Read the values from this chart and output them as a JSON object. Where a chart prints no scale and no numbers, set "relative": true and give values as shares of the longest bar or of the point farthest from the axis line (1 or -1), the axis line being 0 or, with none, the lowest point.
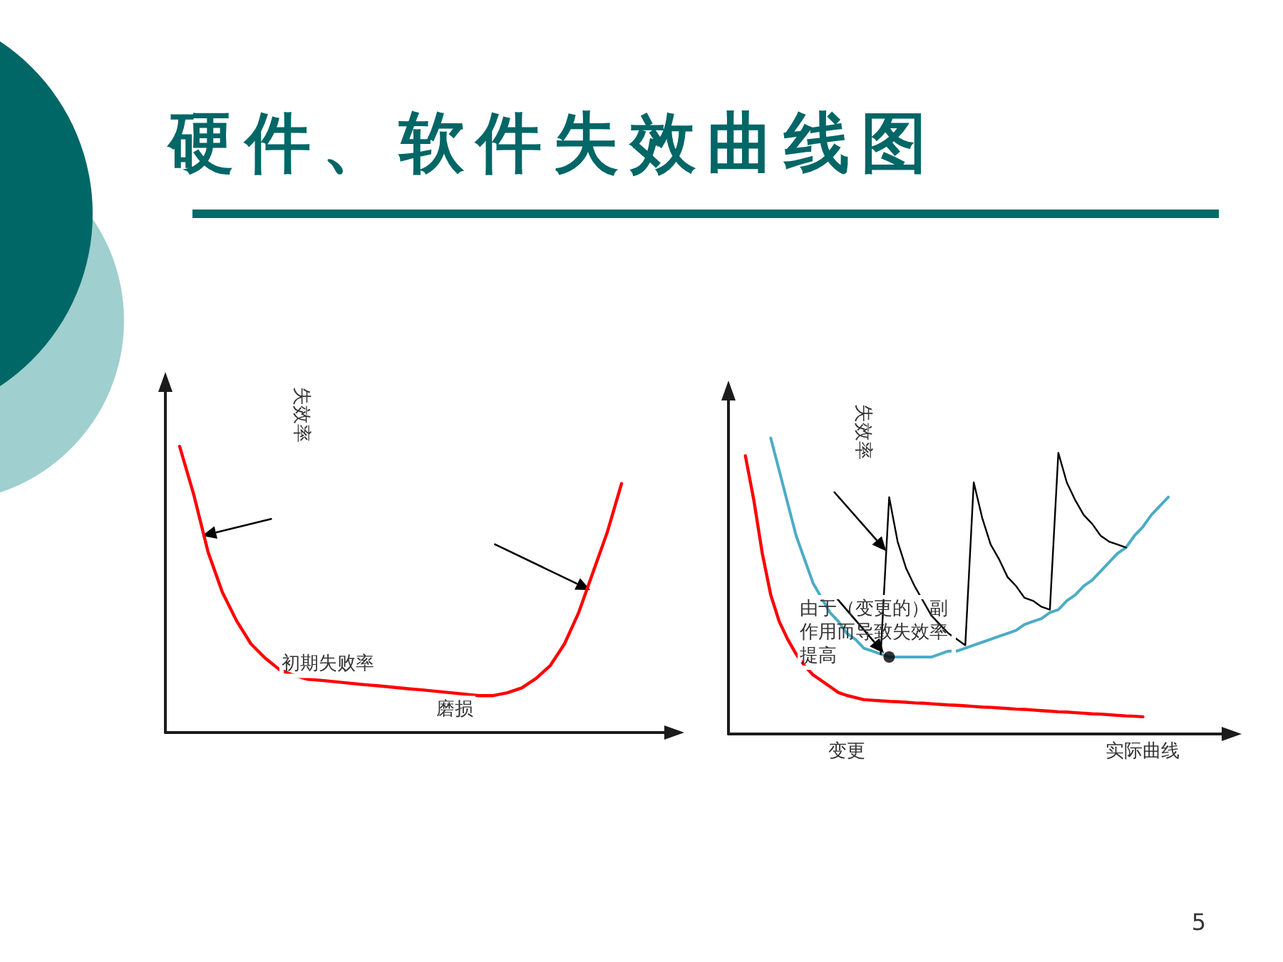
{
  "chart_data": [
    {
      "type": "line",
      "title": "硬件、软件失效曲线图",
      "ylabel": "失效率",
      "relative": true,
      "categories": [
        null,
        null,
        null,
        null,
        null,
        null,
        null,
        null,
        null,
        null,
        null,
        null,
        null,
        null,
        null,
        null,
        null,
        null,
        null,
        null,
        null,
        null,
        null,
        null,
        null,
        null,
        null,
        null,
        null,
        null,
        null,
        null,
        null,
        null,
        null,
        null,
        null
      ],
      "series": [
        {
          "color": "#ff0000",
          "values": [
            null,
            1,
            0.83,
            0.63,
            0.49,
            0.39,
            0.31,
            0.26,
            0.22,
            0.2,
            0.186,
            0.182,
            0.177,
            0.172,
            0.167,
            0.163,
            0.158,
            0.153,
            0.149,
            0.144,
            0.139,
            0.134,
            0.129,
            0.129,
            0.139,
            0.156,
            0.189,
            0.234,
            0.31,
            0.42,
            0.56,
            0.7,
            0.87,
            null,
            null,
            null,
            null
          ]
        }
      ],
      "annotations": [
        "初期失败率",
        "磨损"
      ]
    },
    {
      "type": "line",
      "ylabel": "失效率",
      "relative": true,
      "categories": [
        null,
        null,
        null,
        null,
        null,
        null,
        null,
        null,
        null,
        null,
        null,
        null,
        null,
        null,
        "变更",
        null,
        null,
        null,
        null,
        null,
        null,
        null,
        null,
        null,
        null,
        null,
        null,
        null,
        null,
        null,
        null,
        null,
        null,
        null,
        null,
        null,
        null,
        null,
        null,
        null,
        null,
        null,
        null,
        null,
        null,
        null,
        null,
        null,
        null,
        "实际曲线",
        null,
        null,
        null,
        null,
        null,
        null,
        null,
        null,
        null,
        null,
        null
      ],
      "series": [
        {
          "color": "#ff0000",
          "values": [
            null,
            null,
            0.94,
            0.79,
            0.61,
            0.47,
            0.38,
            0.32,
            0.27,
            0.23,
            0.2,
            0.18,
            0.16,
            0.14,
            0.13,
            0.123,
            0.116,
            0.114,
            0.112,
            0.11,
            0.109,
            0.107,
            0.105,
            0.104,
            0.102,
            0.1,
            0.098,
            0.097,
            0.095,
            0.093,
            0.091,
            0.09,
            0.088,
            0.086,
            0.084,
            0.083,
            0.081,
            0.079,
            0.077,
            0.075,
            0.074,
            0.072,
            0.07,
            0.068,
            0.067,
            0.065,
            0.063,
            0.061,
            0.06,
            0.058,
            null,
            null,
            null,
            null,
            null,
            null,
            null,
            null,
            null,
            null,
            null
          ]
        },
        {
          "color": "#4bacc6",
          "values": [
            null,
            null,
            null,
            null,
            null,
            1,
            0.89,
            0.78,
            0.67,
            0.59,
            0.51,
            0.46,
            0.41,
            0.38,
            0.34,
            0.32,
            0.29,
            0.28,
            0.27,
            0.26,
            0.26,
            0.26,
            0.26,
            0.26,
            0.26,
            0.27,
            0.28,
            0.28,
            0.29,
            0.3,
            0.31,
            0.32,
            0.33,
            0.34,
            0.35,
            0.37,
            0.38,
            0.39,
            0.41,
            0.42,
            0.45,
            0.47,
            0.5,
            0.52,
            0.55,
            0.58,
            0.61,
            0.63,
            0.67,
            0.7,
            0.74,
            0.77,
            0.8,
            null,
            null,
            null,
            null,
            null,
            null,
            null,
            null
          ]
        },
        {
          "color": "#000000",
          "values": [
            null,
            null,
            null,
            null,
            null,
            null,
            null,
            null,
            null,
            null,
            null,
            null,
            null,
            null,
            null,
            null,
            null,
            null,
            0.27,
            0.8,
            0.65,
            0.56,
            0.5,
            0.45,
            0.4,
            0.37,
            0.34,
            0.32,
            0.3,
            0.85,
            0.73,
            0.64,
            0.59,
            0.53,
            0.5,
            0.46,
            0.45,
            0.43,
            0.42,
            0.95,
            0.85,
            0.79,
            0.74,
            0.71,
            0.67,
            0.65,
            0.64,
            0.63,
            null,
            null,
            null,
            null,
            null,
            null,
            null,
            null,
            null,
            null,
            null,
            null,
            null
          ]
        },
        {
          "type": "scatter",
          "color": "#000000",
          "values": [
            null,
            null,
            null,
            null,
            null,
            null,
            null,
            null,
            null,
            null,
            null,
            null,
            null,
            null,
            null,
            null,
            null,
            null,
            null,
            0.26,
            null,
            null,
            null,
            null,
            null,
            null,
            null,
            null,
            null,
            null,
            null,
            null,
            null,
            null,
            null,
            null,
            null,
            null,
            null,
            null,
            null,
            null,
            null,
            null,
            null,
            null,
            null,
            null,
            null,
            null,
            null,
            null,
            null,
            null,
            null,
            null,
            null,
            null,
            null,
            null,
            null
          ]
        }
      ],
      "annotations": [
        "由于（变更的）副作用而导致失效率提高"
      ]
    },
    {
      "type": "other",
      "annotations": [
        "5"
      ]
    }
  ]
}
